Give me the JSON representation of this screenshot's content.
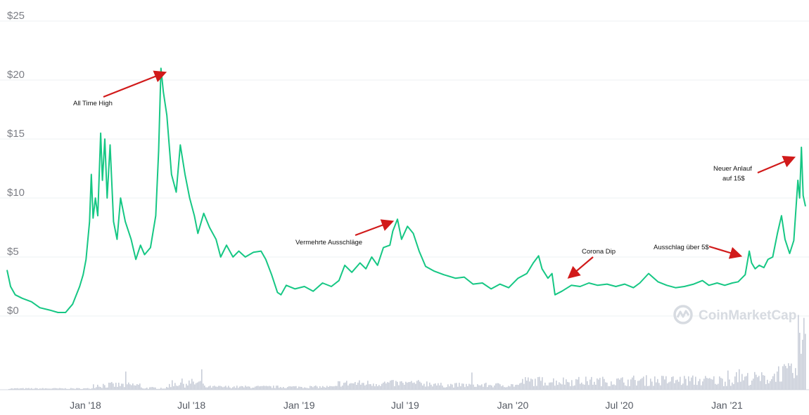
{
  "chart_data": {
    "type": "line",
    "y_ticks": [
      "$0",
      "$5",
      "$10",
      "$15",
      "$20",
      "$25"
    ],
    "y_tick_values": [
      0,
      5,
      10,
      15,
      20,
      25
    ],
    "x_ticks": [
      "Jan '18",
      "Jul '18",
      "Jan '19",
      "Jul '19",
      "Jan '20",
      "Jul '20",
      "Jan '21"
    ],
    "x_tick_values": [
      "2018-01-01",
      "2018-07-01",
      "2019-01-01",
      "2019-07-01",
      "2020-01-01",
      "2020-07-01",
      "2021-01-01"
    ],
    "xlim": [
      "2017-08-20",
      "2021-05-15"
    ],
    "ylim": [
      0,
      25
    ],
    "grid": true,
    "colors": {
      "line": "#16c784",
      "volume": "#c8cdd8",
      "arrow": "#d11a1a"
    },
    "series": [
      {
        "values": [
          [
            "2017-08-20",
            3.9
          ],
          [
            "2017-08-26",
            2.5
          ],
          [
            "2017-09-03",
            1.8
          ],
          [
            "2017-09-15",
            1.5
          ],
          [
            "2017-10-01",
            1.2
          ],
          [
            "2017-10-15",
            0.7
          ],
          [
            "2017-11-01",
            0.5
          ],
          [
            "2017-11-15",
            0.3
          ],
          [
            "2017-11-28",
            0.3
          ],
          [
            "2017-12-10",
            1.0
          ],
          [
            "2017-12-22",
            2.5
          ],
          [
            "2017-12-28",
            3.5
          ],
          [
            "2018-01-02",
            4.8
          ],
          [
            "2018-01-08",
            8.0
          ],
          [
            "2018-01-11",
            12.0
          ],
          [
            "2018-01-14",
            8.3
          ],
          [
            "2018-01-18",
            10.0
          ],
          [
            "2018-01-22",
            8.5
          ],
          [
            "2018-01-27",
            15.5
          ],
          [
            "2018-01-30",
            11.5
          ],
          [
            "2018-02-03",
            15.0
          ],
          [
            "2018-02-07",
            10.0
          ],
          [
            "2018-02-12",
            14.5
          ],
          [
            "2018-02-18",
            8.0
          ],
          [
            "2018-02-24",
            6.5
          ],
          [
            "2018-03-02",
            10.0
          ],
          [
            "2018-03-10",
            8.0
          ],
          [
            "2018-03-20",
            6.5
          ],
          [
            "2018-03-28",
            4.8
          ],
          [
            "2018-04-05",
            6.0
          ],
          [
            "2018-04-12",
            5.2
          ],
          [
            "2018-04-22",
            5.8
          ],
          [
            "2018-05-01",
            8.5
          ],
          [
            "2018-05-06",
            14.0
          ],
          [
            "2018-05-10",
            21.0
          ],
          [
            "2018-05-14",
            19.0
          ],
          [
            "2018-05-20",
            17.0
          ],
          [
            "2018-05-28",
            12.0
          ],
          [
            "2018-06-05",
            10.5
          ],
          [
            "2018-06-12",
            14.5
          ],
          [
            "2018-06-20",
            12.0
          ],
          [
            "2018-06-28",
            10.0
          ],
          [
            "2018-07-06",
            8.5
          ],
          [
            "2018-07-12",
            7.0
          ],
          [
            "2018-07-22",
            8.7
          ],
          [
            "2018-08-01",
            7.5
          ],
          [
            "2018-08-12",
            6.5
          ],
          [
            "2018-08-20",
            5.0
          ],
          [
            "2018-08-30",
            6.0
          ],
          [
            "2018-09-10",
            5.0
          ],
          [
            "2018-09-20",
            5.5
          ],
          [
            "2018-10-01",
            5.0
          ],
          [
            "2018-10-15",
            5.4
          ],
          [
            "2018-10-28",
            5.5
          ],
          [
            "2018-11-05",
            4.8
          ],
          [
            "2018-11-15",
            3.5
          ],
          [
            "2018-11-25",
            2.0
          ],
          [
            "2018-12-01",
            1.8
          ],
          [
            "2018-12-10",
            2.6
          ],
          [
            "2018-12-25",
            2.3
          ],
          [
            "2019-01-10",
            2.5
          ],
          [
            "2019-01-25",
            2.1
          ],
          [
            "2019-02-10",
            2.8
          ],
          [
            "2019-02-25",
            2.5
          ],
          [
            "2019-03-10",
            3.0
          ],
          [
            "2019-03-20",
            4.3
          ],
          [
            "2019-04-01",
            3.7
          ],
          [
            "2019-04-15",
            4.5
          ],
          [
            "2019-04-25",
            4.0
          ],
          [
            "2019-05-05",
            5.0
          ],
          [
            "2019-05-15",
            4.3
          ],
          [
            "2019-05-25",
            5.8
          ],
          [
            "2019-06-05",
            6.0
          ],
          [
            "2019-06-10",
            7.2
          ],
          [
            "2019-06-18",
            8.2
          ],
          [
            "2019-06-25",
            6.5
          ],
          [
            "2019-07-05",
            7.6
          ],
          [
            "2019-07-15",
            7.0
          ],
          [
            "2019-07-25",
            5.5
          ],
          [
            "2019-08-05",
            4.2
          ],
          [
            "2019-08-20",
            3.8
          ],
          [
            "2019-09-05",
            3.5
          ],
          [
            "2019-09-25",
            3.2
          ],
          [
            "2019-10-10",
            3.3
          ],
          [
            "2019-10-25",
            2.7
          ],
          [
            "2019-11-10",
            2.8
          ],
          [
            "2019-11-25",
            2.3
          ],
          [
            "2019-12-10",
            2.7
          ],
          [
            "2019-12-25",
            2.4
          ],
          [
            "2020-01-10",
            3.2
          ],
          [
            "2020-01-25",
            3.6
          ],
          [
            "2020-02-05",
            4.5
          ],
          [
            "2020-02-14",
            5.1
          ],
          [
            "2020-02-20",
            4.0
          ],
          [
            "2020-03-01",
            3.2
          ],
          [
            "2020-03-08",
            3.6
          ],
          [
            "2020-03-13",
            1.8
          ],
          [
            "2020-03-25",
            2.1
          ],
          [
            "2020-04-10",
            2.6
          ],
          [
            "2020-04-25",
            2.5
          ],
          [
            "2020-05-10",
            2.8
          ],
          [
            "2020-05-25",
            2.6
          ],
          [
            "2020-06-10",
            2.7
          ],
          [
            "2020-06-25",
            2.5
          ],
          [
            "2020-07-10",
            2.7
          ],
          [
            "2020-07-25",
            2.4
          ],
          [
            "2020-08-05",
            2.8
          ],
          [
            "2020-08-20",
            3.6
          ],
          [
            "2020-09-05",
            2.9
          ],
          [
            "2020-09-20",
            2.6
          ],
          [
            "2020-10-05",
            2.4
          ],
          [
            "2020-10-20",
            2.5
          ],
          [
            "2020-11-05",
            2.7
          ],
          [
            "2020-11-20",
            3.0
          ],
          [
            "2020-12-01",
            2.6
          ],
          [
            "2020-12-15",
            2.8
          ],
          [
            "2020-12-28",
            2.6
          ],
          [
            "2021-01-10",
            2.8
          ],
          [
            "2021-01-20",
            2.9
          ],
          [
            "2021-02-01",
            3.5
          ],
          [
            "2021-02-08",
            5.5
          ],
          [
            "2021-02-12",
            4.5
          ],
          [
            "2021-02-18",
            4.0
          ],
          [
            "2021-02-25",
            4.3
          ],
          [
            "2021-03-05",
            4.1
          ],
          [
            "2021-03-12",
            4.8
          ],
          [
            "2021-03-20",
            5.0
          ],
          [
            "2021-03-28",
            7.0
          ],
          [
            "2021-04-04",
            8.5
          ],
          [
            "2021-04-10",
            6.5
          ],
          [
            "2021-04-18",
            5.3
          ],
          [
            "2021-04-25",
            6.4
          ],
          [
            "2021-05-02",
            11.5
          ],
          [
            "2021-05-05",
            10.0
          ],
          [
            "2021-05-08",
            14.3
          ],
          [
            "2021-05-11",
            10.2
          ],
          [
            "2021-05-15",
            9.3
          ]
        ]
      }
    ],
    "annotations": [
      {
        "text": "All Time High"
      },
      {
        "text": "Vermehrte Ausschläge"
      },
      {
        "text": "Corona Dip"
      },
      {
        "text": "Ausschlag über 5$"
      },
      {
        "text": "Neuer Anlauf"
      },
      {
        "text": "auf 15$"
      }
    ],
    "watermark": "CoinMarketCap"
  }
}
